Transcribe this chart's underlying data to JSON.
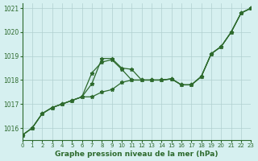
{
  "title": "Graphe pression niveau de la mer (hPa)",
  "bg_color": "#d6f0f0",
  "line_color": "#2d6a2d",
  "grid_color": "#b0d0d0",
  "xlim": [
    0,
    23
  ],
  "ylim": [
    1015.5,
    1021.2
  ],
  "yticks": [
    1016,
    1017,
    1018,
    1019,
    1020,
    1021
  ],
  "xticks": [
    0,
    1,
    2,
    3,
    4,
    5,
    6,
    7,
    8,
    9,
    10,
    11,
    12,
    13,
    14,
    15,
    16,
    17,
    18,
    19,
    20,
    21,
    22,
    23
  ],
  "series": [
    [
      1015.7,
      1016.0,
      1016.6,
      1016.85,
      1017.0,
      1017.15,
      1017.3,
      1017.85,
      1018.9,
      1018.9,
      1018.5,
      1018.45,
      1018.0,
      1018.0,
      1018.0,
      1018.05,
      1017.8,
      1017.8,
      1018.15,
      1019.1,
      1019.4,
      1020.0,
      1020.8,
      1021.0
    ],
    [
      1015.7,
      1016.0,
      1016.6,
      1016.85,
      1017.0,
      1017.15,
      1017.3,
      1018.3,
      1018.75,
      1018.85,
      1018.45,
      1018.0,
      1018.0,
      1018.0,
      1018.0,
      1018.05,
      1017.8,
      1017.8,
      1018.15,
      1019.1,
      1019.4,
      1020.0,
      1020.8,
      1021.0
    ],
    [
      1015.7,
      1016.0,
      1016.6,
      1016.85,
      1017.0,
      1017.15,
      1017.3,
      1017.3,
      1017.5,
      1017.6,
      1017.9,
      1018.0,
      1018.0,
      1018.0,
      1018.0,
      1018.05,
      1017.8,
      1017.8,
      1018.15,
      1019.1,
      1019.4,
      1020.0,
      1020.8,
      1021.0
    ]
  ]
}
